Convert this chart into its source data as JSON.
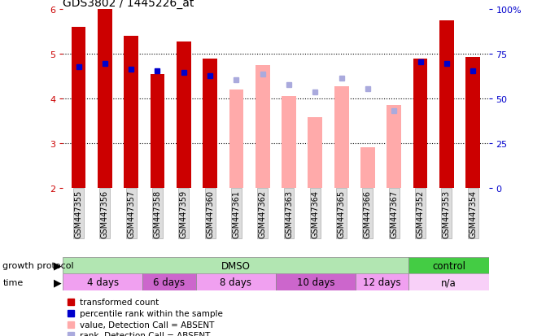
{
  "title": "GDS3802 / 1445226_at",
  "samples": [
    "GSM447355",
    "GSM447356",
    "GSM447357",
    "GSM447358",
    "GSM447359",
    "GSM447360",
    "GSM447361",
    "GSM447362",
    "GSM447363",
    "GSM447364",
    "GSM447365",
    "GSM447366",
    "GSM447367",
    "GSM447352",
    "GSM447353",
    "GSM447354"
  ],
  "bar_values": [
    5.6,
    6.0,
    5.4,
    4.55,
    5.28,
    4.9,
    null,
    null,
    null,
    null,
    null,
    null,
    null,
    4.9,
    5.75,
    4.93
  ],
  "bar_color_present": "#cc0000",
  "bar_color_absent": "#ffaaaa",
  "absent_bar_values": [
    null,
    null,
    null,
    null,
    null,
    null,
    4.2,
    4.75,
    4.05,
    3.58,
    4.28,
    2.9,
    3.85,
    null,
    null,
    null
  ],
  "blue_rank_present": [
    4.72,
    4.78,
    4.65,
    4.62,
    4.58,
    4.52,
    null,
    null,
    null,
    null,
    null,
    null,
    null,
    4.82,
    4.78,
    4.62
  ],
  "blue_rank_absent": [
    null,
    null,
    null,
    null,
    null,
    null,
    4.42,
    4.55,
    4.32,
    4.15,
    4.45,
    4.22,
    3.72,
    null,
    null,
    null
  ],
  "ylim": [
    2,
    6
  ],
  "yticks_left": [
    2,
    3,
    4,
    5,
    6
  ],
  "right_yticklabels": [
    "0",
    "25",
    "50",
    "75",
    "100%"
  ],
  "growth_protocol_groups": [
    {
      "label": "DMSO",
      "start": 0,
      "end": 13,
      "color": "#b2e6b2"
    },
    {
      "label": "control",
      "start": 13,
      "end": 16,
      "color": "#44cc44"
    }
  ],
  "time_groups": [
    {
      "label": "4 days",
      "start": 0,
      "end": 3,
      "color": "#f0a0f0"
    },
    {
      "label": "6 days",
      "start": 3,
      "end": 5,
      "color": "#cc66cc"
    },
    {
      "label": "8 days",
      "start": 5,
      "end": 8,
      "color": "#f0a0f0"
    },
    {
      "label": "10 days",
      "start": 8,
      "end": 11,
      "color": "#cc66cc"
    },
    {
      "label": "12 days",
      "start": 11,
      "end": 13,
      "color": "#f0a0f0"
    },
    {
      "label": "n/a",
      "start": 13,
      "end": 16,
      "color": "#f8d0f8"
    }
  ],
  "legend_items": [
    {
      "label": "transformed count",
      "color": "#cc0000"
    },
    {
      "label": "percentile rank within the sample",
      "color": "#0000cc"
    },
    {
      "label": "value, Detection Call = ABSENT",
      "color": "#ffaaaa"
    },
    {
      "label": "rank, Detection Call = ABSENT",
      "color": "#aaaadd"
    }
  ],
  "background_color": "#ffffff",
  "left_tick_color": "#cc0000",
  "right_tick_color": "#0000cc",
  "bar_width": 0.55
}
